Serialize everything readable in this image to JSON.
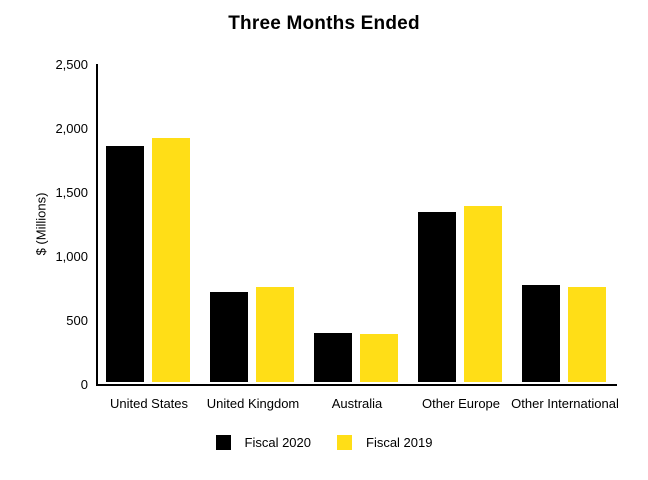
{
  "chart_data": {
    "type": "bar",
    "title": "Three Months Ended",
    "xlabel": "",
    "ylabel": "$ (Millions)",
    "categories": [
      "United States",
      "United Kingdom",
      "Australia",
      "Other Europe",
      "Other International"
    ],
    "series": [
      {
        "name": "Fiscal 2020",
        "color": "#000000",
        "values": [
          1845,
          700,
          380,
          1330,
          755
        ]
      },
      {
        "name": "Fiscal 2019",
        "color": "#FFDE17",
        "values": [
          1910,
          745,
          375,
          1375,
          740
        ]
      }
    ],
    "ylim": [
      0,
      2500
    ],
    "ytick_interval": 500,
    "ytick_labels": [
      "0",
      "500",
      "1,000",
      "1,500",
      "2,000",
      "2,500"
    ],
    "grid": false,
    "legend_position": "bottom",
    "axis_color": "#000000",
    "background_color": "#FFFFFF"
  }
}
